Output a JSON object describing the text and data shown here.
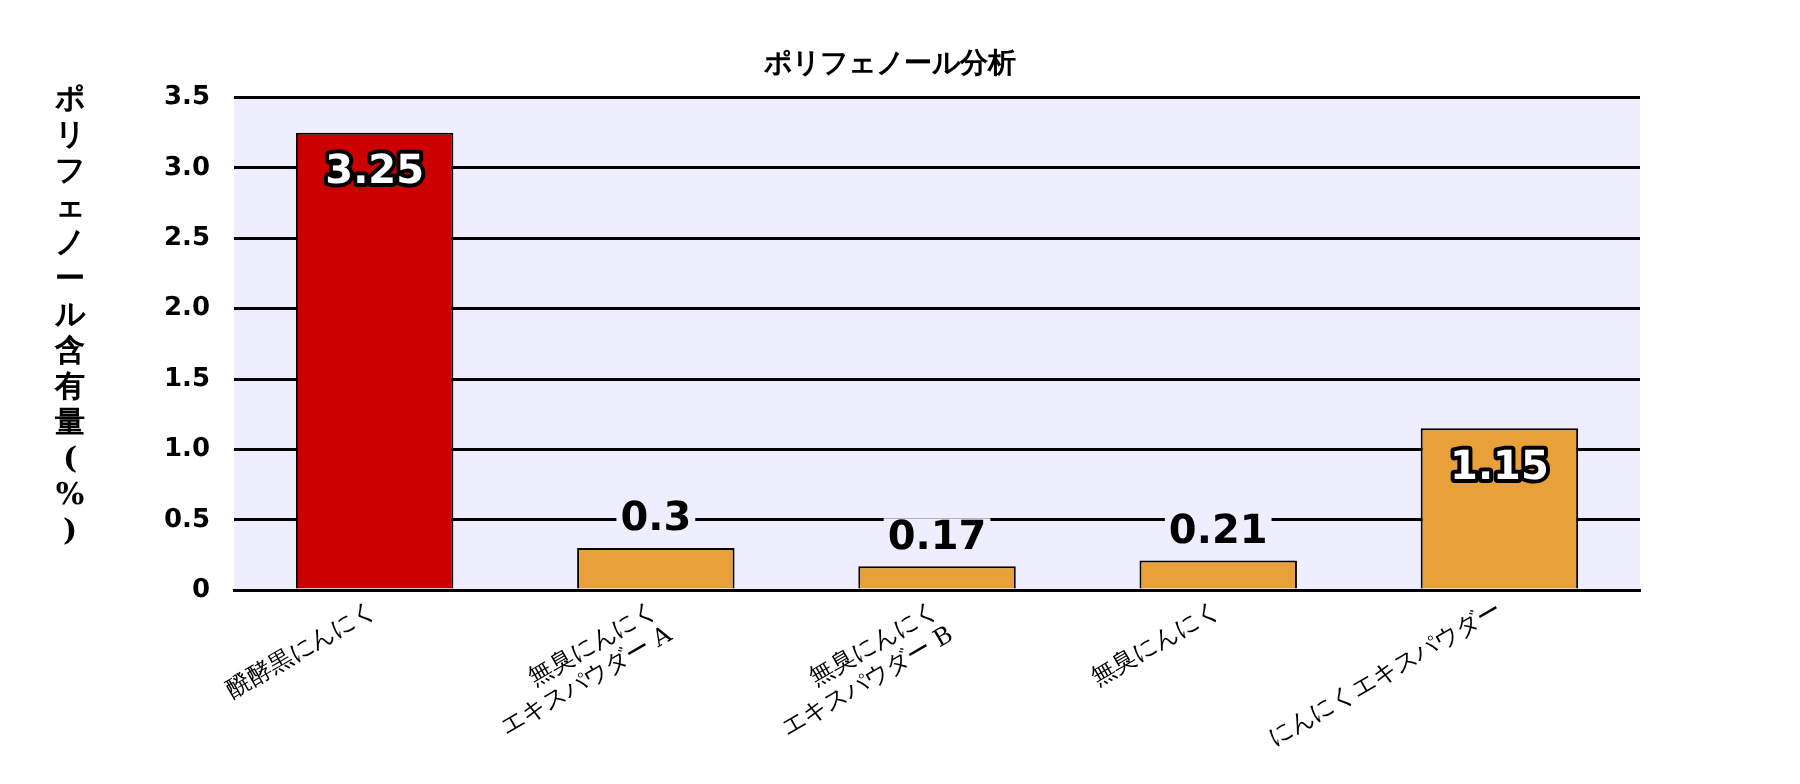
{
  "chart_data": {
    "type": "bar",
    "title": "ポリフェノール分析",
    "ylabel": "ポリフェノール含有量(%)",
    "categories": [
      "醗酵黒にんにく",
      "無臭にんにく\nエキスパウダー A",
      "無臭にんにく\nエキスパウダー B",
      "無臭にんにく",
      "にんにくエキスパウダー"
    ],
    "values": [
      3.25,
      0.3,
      0.17,
      0.21,
      1.15
    ],
    "colors": [
      "#cc0000",
      "#e8a038",
      "#e8a038",
      "#e8a038",
      "#e8a038"
    ],
    "ylim": [
      0,
      3.5
    ],
    "yticks": [
      0,
      0.5,
      {
        "value": 1,
        "label": "1.0"
      },
      1.5,
      {
        "value": 2,
        "label": "2.0"
      },
      2.5,
      {
        "value": 3,
        "label": "3.0"
      },
      3.5
    ],
    "grid": "y",
    "legend": false,
    "data_labels": true
  }
}
